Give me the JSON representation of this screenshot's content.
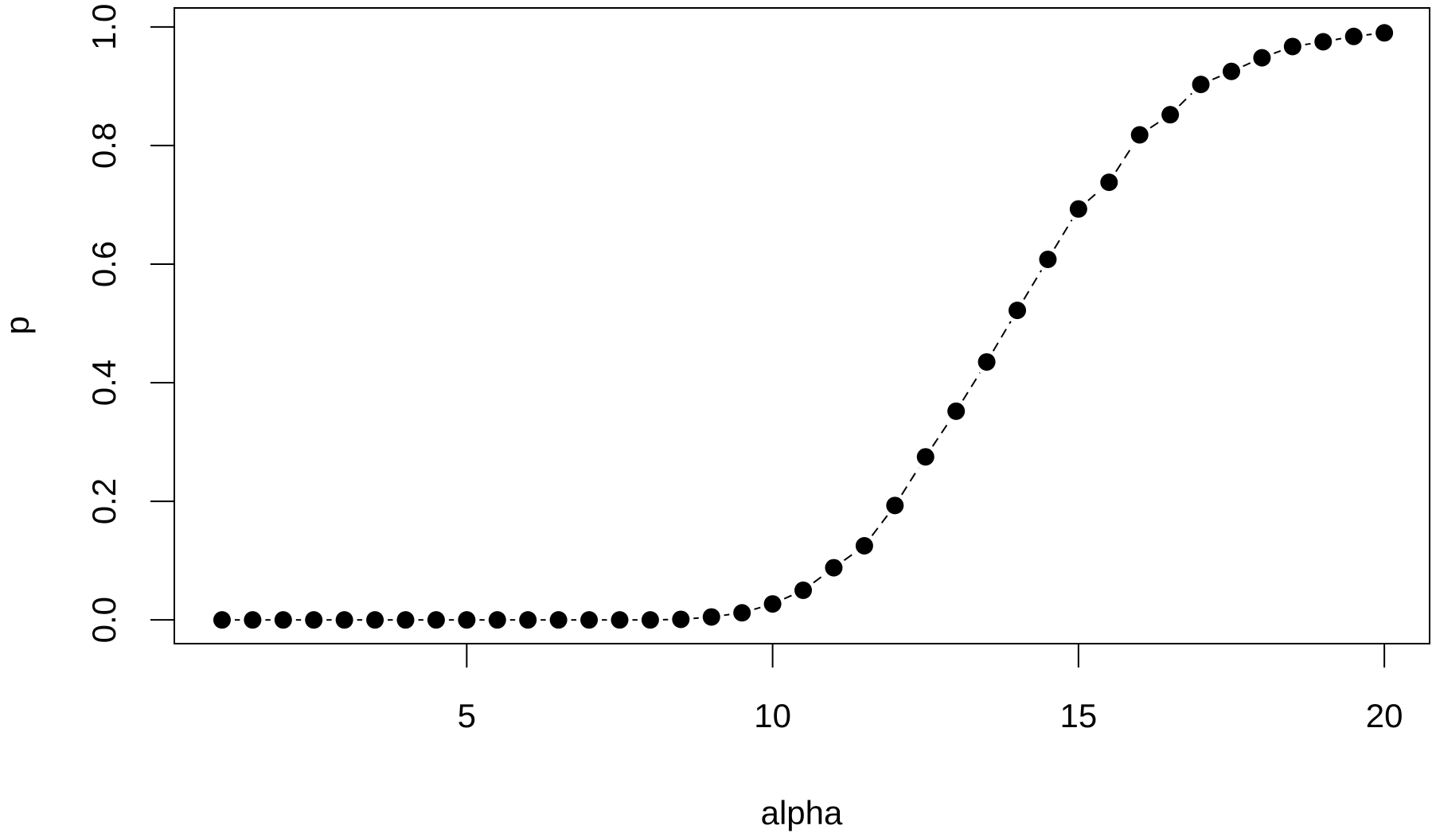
{
  "chart_data": {
    "type": "scatter",
    "title": "",
    "xlabel": "alpha",
    "ylabel": "p",
    "xlim": [
      0.22,
      20.74
    ],
    "ylim": [
      -0.04,
      1.032
    ],
    "x_ticks": [
      5,
      10,
      15,
      20
    ],
    "x_tick_labels": [
      "5",
      "10",
      "15",
      "20"
    ],
    "y_ticks": [
      0.0,
      0.2,
      0.4,
      0.6,
      0.8,
      1.0
    ],
    "y_tick_labels": [
      "0.0",
      "0.2",
      "0.4",
      "0.6",
      "0.8",
      "1.0"
    ],
    "grid": false,
    "legend": "none",
    "marker_color": "#000000",
    "line_style": "dashed",
    "series": [
      {
        "x": [
          1,
          1.5,
          2,
          2.5,
          3,
          3.5,
          4,
          4.5,
          5,
          5.5,
          6,
          6.5,
          7,
          7.5,
          8,
          8.5,
          9,
          9.5,
          10,
          10.5,
          11,
          11.5,
          12,
          12.5,
          13,
          13.5,
          14,
          14.5,
          15,
          15.5,
          16,
          16.5,
          17,
          17.5,
          18,
          18.5,
          19,
          19.5,
          20
        ],
        "y": [
          0,
          0,
          0,
          0,
          0,
          0,
          0,
          0,
          0,
          0,
          0,
          0,
          0,
          0,
          0,
          0.001,
          0.005,
          0.012,
          0.027,
          0.05,
          0.088,
          0.125,
          0.193,
          0.275,
          0.352,
          0.435,
          0.522,
          0.608,
          0.693,
          0.738,
          0.818,
          0.852,
          0.903,
          0.925,
          0.948,
          0.967,
          0.975,
          0.984,
          0.99
        ]
      }
    ]
  }
}
